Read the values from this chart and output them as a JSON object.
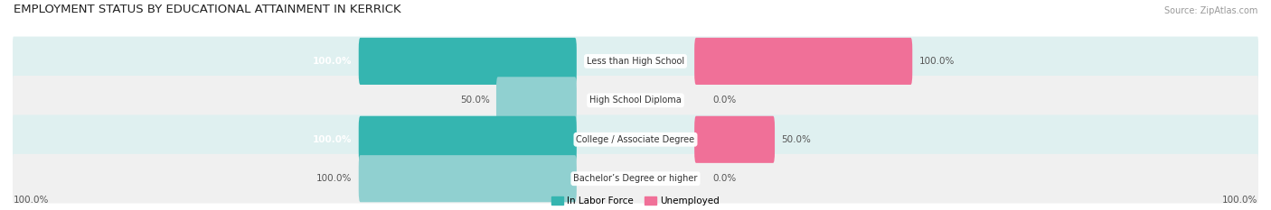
{
  "title": "EMPLOYMENT STATUS BY EDUCATIONAL ATTAINMENT IN KERRICK",
  "source": "Source: ZipAtlas.com",
  "categories": [
    "Less than High School",
    "High School Diploma",
    "College / Associate Degree",
    "Bachelor’s Degree or higher"
  ],
  "labor_force": [
    100.0,
    50.0,
    100.0,
    100.0
  ],
  "unemployed": [
    100.0,
    0.0,
    50.0,
    0.0
  ],
  "color_labor": "#35b5b0",
  "color_unemployed": "#f07098",
  "color_labor_light": "#90d0d0",
  "color_unemployed_light": "#f5a8c0",
  "row_bg_dark": "#dff0f0",
  "row_bg_light": "#f0f0f0",
  "axis_label_left": "100.0%",
  "axis_label_right": "100.0%",
  "legend_labor": "In Labor Force",
  "legend_unemployed": "Unemployed",
  "title_fontsize": 9.5,
  "source_fontsize": 7,
  "bar_fontsize": 7.5,
  "cat_fontsize": 7,
  "legend_fontsize": 7.5
}
